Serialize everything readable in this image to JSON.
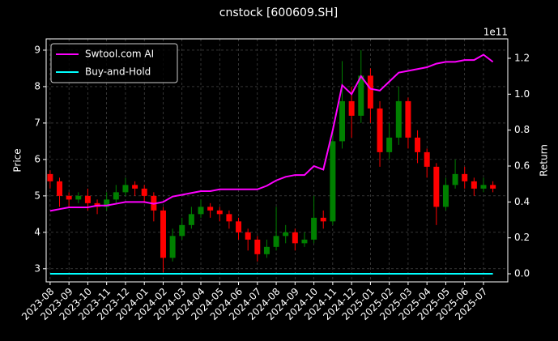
{
  "chart_data": {
    "type": "candlestick",
    "title": "cnstock [600609.SH]",
    "ylabel": "Price",
    "y2label": "Return",
    "y2_offset_label": "1e11",
    "x": [
      0,
      0.5,
      1,
      1.5,
      2,
      2.5,
      3,
      3.5,
      4,
      4.5,
      5,
      5.5,
      6,
      6.5,
      7,
      7.5,
      8,
      8.5,
      9,
      9.5,
      10,
      10.5,
      11,
      11.5,
      12,
      12.5,
      13,
      13.5,
      14,
      14.5,
      15,
      15.5,
      16,
      16.5,
      17,
      17.5,
      18,
      18.5,
      19,
      19.5,
      20,
      20.5,
      21,
      21.5,
      22,
      22.5,
      23,
      23.5
    ],
    "open": [
      5.6,
      5.4,
      5.0,
      4.9,
      5.0,
      4.8,
      4.7,
      4.9,
      5.1,
      5.3,
      5.2,
      5.0,
      4.6,
      3.3,
      3.9,
      4.2,
      4.5,
      4.7,
      4.6,
      4.5,
      4.3,
      4.0,
      3.8,
      3.4,
      3.6,
      3.9,
      4.0,
      3.7,
      3.8,
      4.4,
      4.3,
      6.5,
      7.6,
      7.2,
      8.3,
      7.4,
      6.2,
      6.6,
      7.6,
      6.6,
      6.2,
      5.8,
      4.7,
      5.3,
      5.6,
      5.4,
      5.2,
      5.3
    ],
    "high": [
      5.7,
      5.5,
      5.1,
      5.1,
      5.2,
      4.9,
      5.1,
      5.3,
      5.5,
      5.4,
      5.3,
      5.1,
      4.7,
      4.1,
      4.4,
      4.7,
      4.9,
      4.8,
      4.7,
      4.6,
      4.4,
      4.1,
      3.9,
      3.8,
      4.7,
      4.2,
      4.1,
      4.0,
      5.0,
      4.6,
      6.8,
      8.7,
      8.0,
      9.0,
      8.5,
      7.6,
      7.0,
      8.0,
      7.7,
      6.8,
      6.3,
      5.9,
      5.5,
      6.0,
      5.8,
      5.5,
      5.5,
      5.4
    ],
    "low": [
      5.2,
      4.7,
      4.7,
      4.8,
      4.6,
      4.5,
      4.6,
      4.8,
      5.0,
      5.0,
      4.8,
      4.3,
      2.9,
      3.2,
      3.8,
      4.1,
      4.4,
      4.4,
      4.3,
      4.1,
      3.8,
      3.5,
      3.2,
      3.3,
      3.5,
      3.7,
      3.5,
      3.6,
      3.7,
      4.1,
      4.2,
      6.3,
      6.6,
      7.0,
      7.0,
      5.8,
      6.0,
      6.4,
      6.3,
      5.9,
      5.5,
      4.2,
      4.6,
      5.2,
      5.2,
      5.0,
      5.1,
      5.1
    ],
    "close": [
      5.4,
      5.0,
      4.9,
      5.0,
      4.8,
      4.7,
      4.9,
      5.1,
      5.3,
      5.2,
      5.0,
      4.6,
      3.3,
      3.9,
      4.2,
      4.5,
      4.7,
      4.6,
      4.5,
      4.3,
      4.0,
      3.8,
      3.4,
      3.6,
      3.9,
      4.0,
      3.7,
      3.8,
      4.4,
      4.3,
      6.5,
      7.6,
      7.2,
      8.3,
      7.4,
      6.2,
      6.6,
      7.6,
      6.6,
      6.2,
      5.8,
      4.7,
      5.3,
      5.6,
      5.4,
      5.2,
      5.3,
      5.2
    ],
    "up_color": "#008000",
    "down_color": "#ff0000",
    "series": [
      {
        "name": "Swtool.com AI",
        "color": "#ff00ff",
        "axis": "y2",
        "values": [
          0.35,
          0.36,
          0.37,
          0.37,
          0.37,
          0.38,
          0.38,
          0.39,
          0.4,
          0.4,
          0.4,
          0.39,
          0.4,
          0.43,
          0.44,
          0.45,
          0.46,
          0.46,
          0.47,
          0.47,
          0.47,
          0.47,
          0.47,
          0.49,
          0.52,
          0.54,
          0.55,
          0.55,
          0.6,
          0.58,
          0.8,
          1.05,
          1.0,
          1.1,
          1.03,
          1.02,
          1.07,
          1.12,
          1.13,
          1.14,
          1.15,
          1.17,
          1.18,
          1.18,
          1.19,
          1.19,
          1.22,
          1.18
        ]
      },
      {
        "name": "Buy-and-Hold",
        "color": "#00ffff",
        "axis": "y2",
        "values": [
          0,
          0,
          0,
          0,
          0,
          0,
          0,
          0,
          0,
          0,
          0,
          0,
          0,
          0,
          0,
          0,
          0,
          0,
          0,
          0,
          0,
          0,
          0,
          0,
          0,
          0,
          0,
          0,
          0,
          0,
          0,
          0,
          0,
          0,
          0,
          0,
          0,
          0,
          0,
          0,
          0,
          0,
          0,
          0,
          0,
          0,
          0,
          0
        ]
      }
    ],
    "xlim": [
      -0.21,
      24.29
    ],
    "xticks": [
      {
        "value": 0,
        "label": "2023-08"
      },
      {
        "value": 1,
        "label": "2023-09"
      },
      {
        "value": 2,
        "label": "2023-10"
      },
      {
        "value": 3,
        "label": "2023-11"
      },
      {
        "value": 4,
        "label": "2023-12"
      },
      {
        "value": 5,
        "label": "2024-01"
      },
      {
        "value": 6,
        "label": "2024-02"
      },
      {
        "value": 7,
        "label": "2024-03"
      },
      {
        "value": 8,
        "label": "2024-04"
      },
      {
        "value": 9,
        "label": "2024-05"
      },
      {
        "value": 10,
        "label": "2024-06"
      },
      {
        "value": 11,
        "label": "2024-07"
      },
      {
        "value": 12,
        "label": "2024-08"
      },
      {
        "value": 13,
        "label": "2024-09"
      },
      {
        "value": 14,
        "label": "2024-10"
      },
      {
        "value": 15,
        "label": "2024-11"
      },
      {
        "value": 16,
        "label": "2024-12"
      },
      {
        "value": 17,
        "label": "2025-01"
      },
      {
        "value": 18,
        "label": "2025-02"
      },
      {
        "value": 19,
        "label": "2025-03"
      },
      {
        "value": 20,
        "label": "2025-04"
      },
      {
        "value": 21,
        "label": "2025-05"
      },
      {
        "value": 22,
        "label": "2025-06"
      },
      {
        "value": 23,
        "label": "2025-07"
      }
    ],
    "ylim": [
      2.64,
      9.31
    ],
    "yticks": [
      3,
      4,
      5,
      6,
      7,
      8,
      9
    ],
    "y2lim": [
      -0.045,
      1.308
    ],
    "y2ticks": [
      {
        "value": 0,
        "label": "0.0"
      },
      0.2,
      0.4,
      0.6,
      0.8,
      {
        "value": 1,
        "label": "1.0"
      },
      1.2
    ],
    "grid": true,
    "legend": "upper left"
  }
}
